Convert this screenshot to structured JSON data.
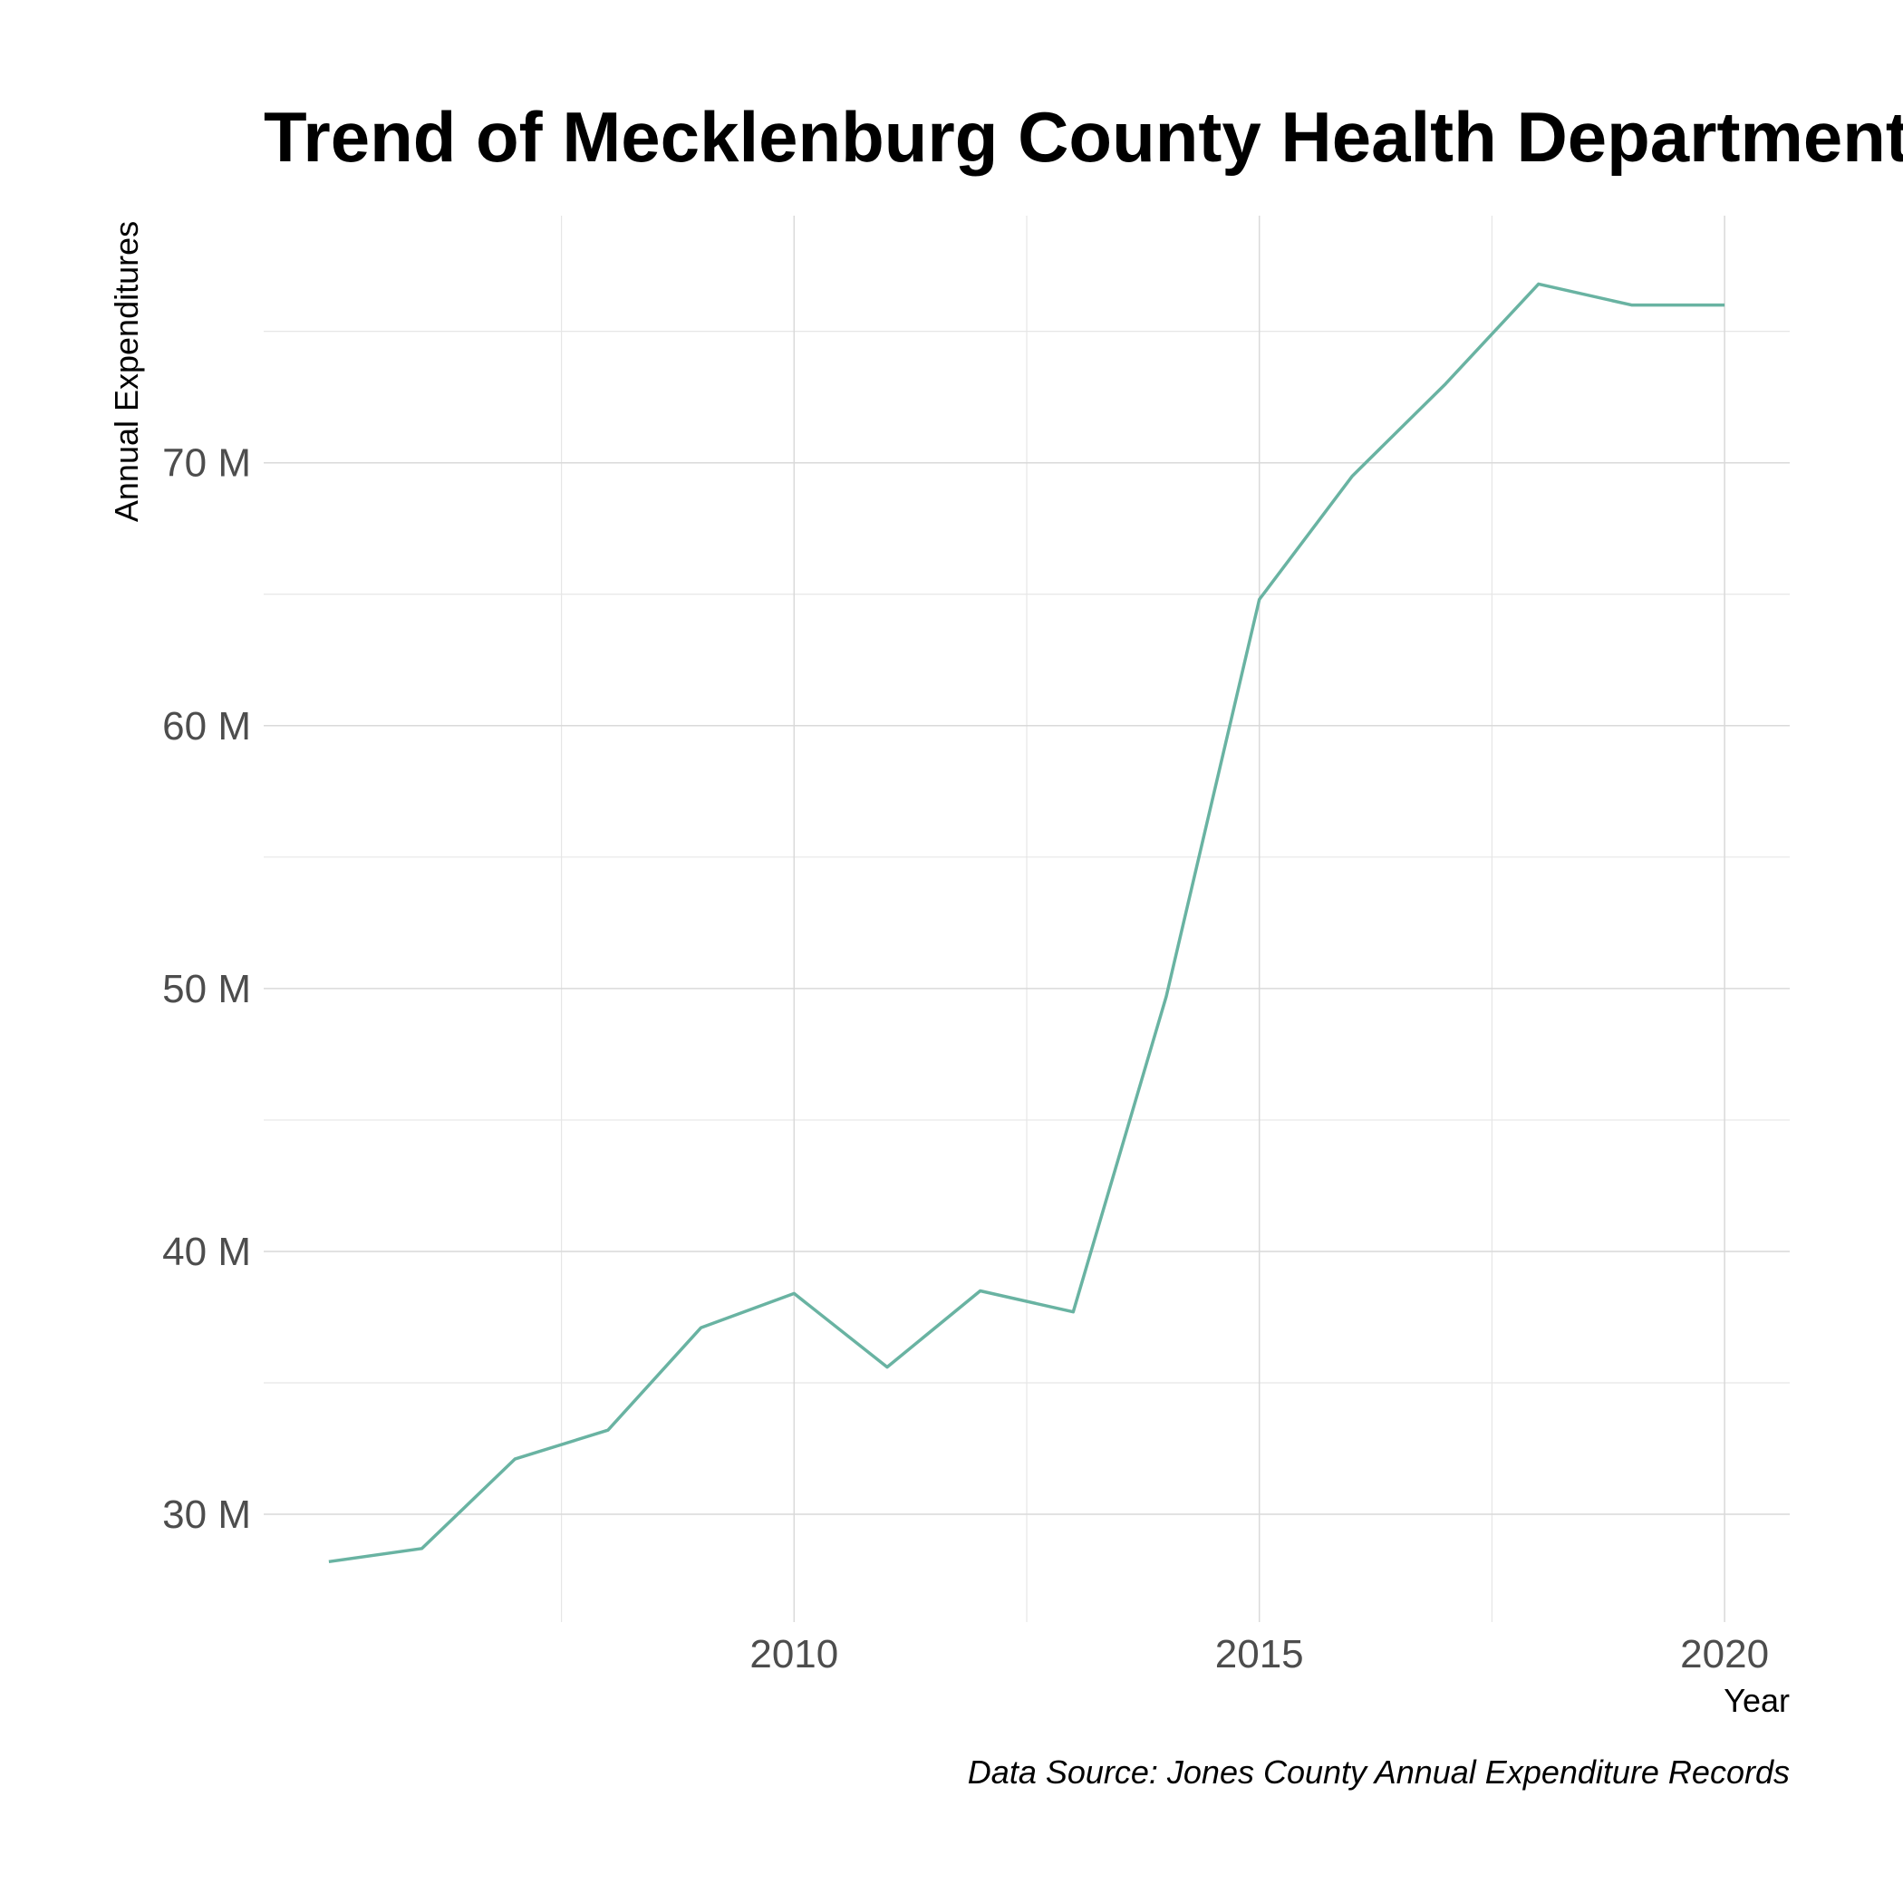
{
  "chart_data": {
    "type": "line",
    "title": "Trend of Mecklenburg County Health Department S",
    "xlabel": "Year",
    "ylabel": "Annual Expenditures",
    "caption": "Data Source: Jones County Annual Expenditure Records",
    "x_ticks": [
      2010,
      2015,
      2020
    ],
    "y_ticks": [
      30000000,
      40000000,
      50000000,
      60000000,
      70000000
    ],
    "y_tick_labels": [
      "30 M",
      "40 M",
      "50 M",
      "60 M",
      "70 M"
    ],
    "xlim": [
      2004.3,
      2020.7
    ],
    "ylim": [
      25900000,
      79400000
    ],
    "grid": true,
    "line_color": "#69b3a2",
    "series": [
      {
        "x": [
          2005,
          2006,
          2007,
          2008,
          2009,
          2010,
          2011,
          2012,
          2013,
          2014,
          2015,
          2016,
          2017,
          2018,
          2019,
          2020
        ],
        "values": [
          28200000,
          28700000,
          32100000,
          33200000,
          37100000,
          38400000,
          35600000,
          38500000,
          37700000,
          49700000,
          64800000,
          69500000,
          73000000,
          76800000,
          76000000,
          76000000
        ]
      }
    ]
  }
}
